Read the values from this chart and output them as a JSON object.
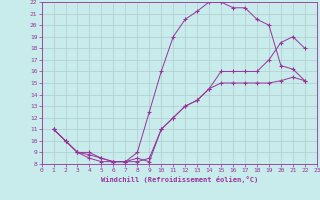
{
  "xlabel": "Windchill (Refroidissement éolien,°C)",
  "background_color": "#c8ecec",
  "line_color": "#993399",
  "grid_color": "#b0cccc",
  "xlim": [
    0,
    23
  ],
  "ylim": [
    8,
    22
  ],
  "yticks": [
    8,
    9,
    10,
    11,
    12,
    13,
    14,
    15,
    16,
    17,
    18,
    19,
    20,
    21,
    22
  ],
  "xticks": [
    0,
    1,
    2,
    3,
    4,
    5,
    6,
    7,
    8,
    9,
    10,
    11,
    12,
    13,
    14,
    15,
    16,
    17,
    18,
    19,
    20,
    21,
    22,
    23
  ],
  "line1_x": [
    1,
    2,
    3,
    4,
    5,
    6,
    7,
    8,
    9,
    10,
    11,
    12,
    13,
    14,
    15,
    16,
    17,
    18,
    19,
    20,
    21,
    22
  ],
  "line1_y": [
    11,
    10,
    9,
    8.5,
    8.2,
    8.2,
    8.2,
    8.2,
    8.5,
    11,
    12,
    13,
    13.5,
    14.5,
    16,
    16,
    16,
    16,
    17,
    18.5,
    19,
    18
  ],
  "line2_x": [
    1,
    2,
    3,
    4,
    5,
    6,
    7,
    8,
    9,
    10,
    11,
    12,
    13,
    14,
    15,
    16,
    17,
    18,
    19,
    20,
    21,
    22
  ],
  "line2_y": [
    11,
    10,
    9,
    9,
    8.5,
    8.2,
    8.2,
    9,
    12.5,
    16,
    19,
    20.5,
    21.2,
    22,
    22,
    21.5,
    21.5,
    20.5,
    20,
    16.5,
    16.2,
    15.2
  ],
  "line3_x": [
    1,
    2,
    3,
    4,
    5,
    6,
    7,
    8,
    9,
    10,
    11,
    12,
    13,
    14,
    15,
    16,
    17,
    18,
    19,
    20,
    21,
    22
  ],
  "line3_y": [
    11,
    10,
    9,
    8.8,
    8.5,
    8.2,
    8.2,
    8.5,
    8.2,
    11,
    12,
    13,
    13.5,
    14.5,
    15,
    15,
    15,
    15,
    15,
    15.2,
    15.5,
    15.2
  ]
}
